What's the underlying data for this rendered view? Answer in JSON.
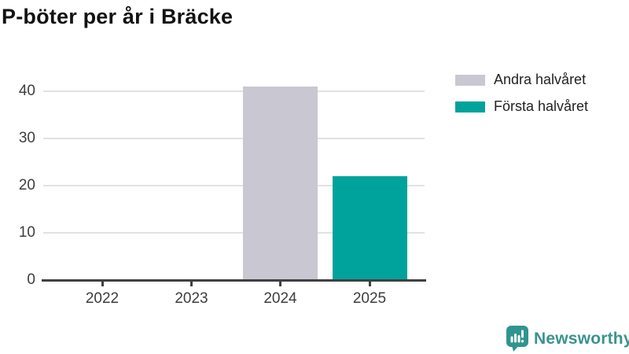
{
  "chart_data": {
    "type": "bar",
    "title": "P-böter per år i Bräcke",
    "categories": [
      "2022",
      "2023",
      "2024",
      "2025"
    ],
    "series": [
      {
        "name": "Andra halvåret",
        "color": "#c9c7d1",
        "values": [
          null,
          null,
          41,
          null
        ]
      },
      {
        "name": "Första halvåret",
        "color": "#00a39b",
        "values": [
          null,
          null,
          null,
          22
        ]
      }
    ],
    "yticks": [
      0,
      10,
      20,
      30,
      40
    ],
    "ylim": [
      0,
      44
    ],
    "xlabel": "",
    "ylabel": "",
    "grid": true,
    "legend_position": "top-right"
  },
  "branding": {
    "logo_text": "Newsworthy",
    "logo_color": "#3a938e",
    "logo_icon": "bar-chart-speech-bubble-icon"
  }
}
